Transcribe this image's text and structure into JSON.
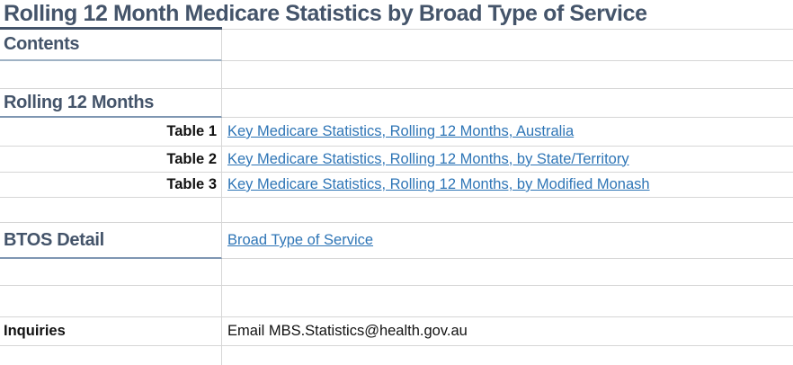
{
  "title": "Rolling 12 Month Medicare Statistics by Broad Type of Service",
  "contents_label": "Contents",
  "rolling": {
    "heading": "Rolling 12 Months",
    "tables": [
      {
        "label": "Table 1",
        "link": "Key Medicare Statistics, Rolling 12 Months, Australia"
      },
      {
        "label": "Table 2",
        "link": "Key Medicare Statistics, Rolling 12 Months, by State/Territory"
      },
      {
        "label": "Table 3",
        "link": "Key Medicare Statistics, Rolling 12 Months, by Modified Monash"
      }
    ]
  },
  "btos": {
    "heading": "BTOS Detail",
    "link": "Broad Type of Service"
  },
  "inquiries": {
    "heading": "Inquiries",
    "text": "Email MBS.Statistics@health.gov.au"
  },
  "colors": {
    "heading_text": "#44546A",
    "link": "#2E75B6",
    "body_text": "#111111",
    "gridline": "#D6D6D6",
    "title_border": "#44546A",
    "heading_border": "#7E96B2",
    "heading_border_light": "#9FB2C4",
    "background": "#FFFFFF"
  }
}
